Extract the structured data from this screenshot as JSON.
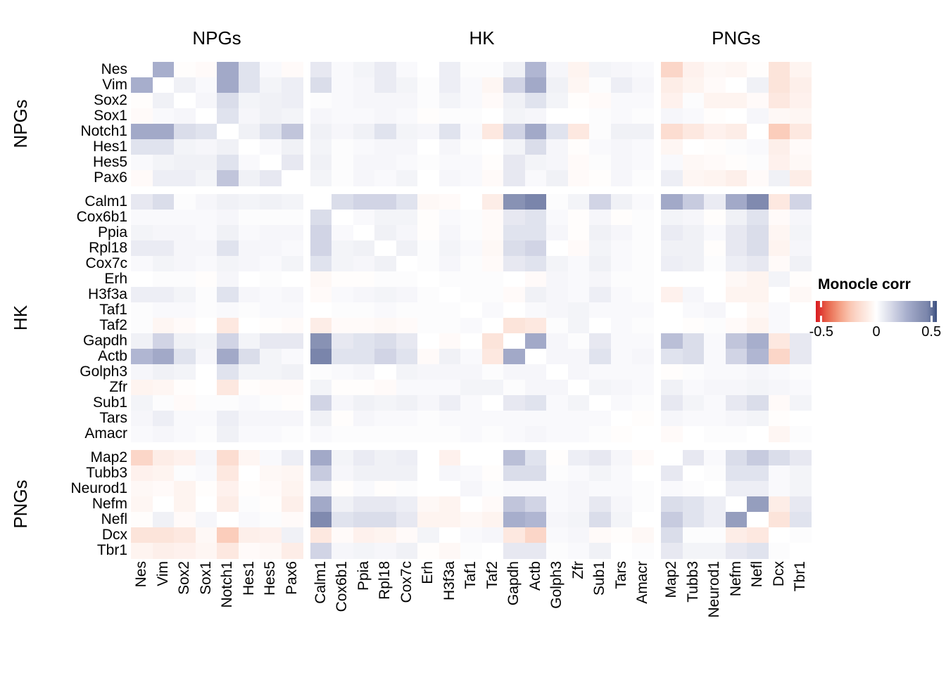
{
  "chart_data": {
    "type": "heatmap",
    "description": "Gene-gene correlation heatmap (Monocle correlation) of neural progenitor genes (NPGs), housekeeping genes (HK) and post-mitotic neuron genes (PNGs)",
    "col_groups": [
      {
        "label": "NPGs",
        "count": 8
      },
      {
        "label": "HK",
        "count": 16
      },
      {
        "label": "PNGs",
        "count": 7
      }
    ],
    "row_groups": [
      {
        "label": "NPGs",
        "count": 8
      },
      {
        "label": "HK",
        "count": 16
      },
      {
        "label": "PNGs",
        "count": 7
      }
    ],
    "genes": [
      "Nes",
      "Vim",
      "Sox2",
      "Sox1",
      "Notch1",
      "Hes1",
      "Hes5",
      "Pax6",
      "Calm1",
      "Cox6b1",
      "Ppia",
      "Rpl18",
      "Cox7c",
      "Erh",
      "H3f3a",
      "Taf1",
      "Taf2",
      "Gapdh",
      "Actb",
      "Golph3",
      "Zfr",
      "Sub1",
      "Tars",
      "Amacr",
      "Map2",
      "Tubb3",
      "Neurod1",
      "Nefm",
      "Nefl",
      "Dcx",
      "Tbr1"
    ],
    "matrix": [
      [
        0,
        0.28,
        -0.01,
        -0.02,
        0.3,
        0.1,
        0.02,
        -0.02,
        0.08,
        0.02,
        0.04,
        0.07,
        0.02,
        0,
        0.06,
        0.01,
        0.01,
        0.05,
        0.25,
        0.03,
        -0.05,
        0.04,
        0.03,
        0.02,
        -0.18,
        -0.06,
        -0.03,
        -0.04,
        -0.01,
        -0.12,
        -0.05
      ],
      [
        0.28,
        0,
        0.05,
        0.02,
        0.3,
        0.1,
        0.04,
        0.06,
        0.12,
        0.02,
        0.03,
        0.07,
        0.04,
        0.01,
        0.06,
        0.02,
        -0.04,
        0.15,
        0.3,
        0.05,
        -0.04,
        0.01,
        0.06,
        0.03,
        -0.08,
        -0.05,
        -0.02,
        0,
        0.05,
        -0.12,
        -0.07
      ],
      [
        -0.01,
        0.05,
        0,
        0.03,
        0.12,
        0.04,
        0.05,
        0.06,
        0.01,
        0.02,
        0.03,
        0.03,
        0.03,
        0.01,
        0.04,
        0.02,
        -0.02,
        0.05,
        0.1,
        0.04,
        -0.01,
        -0.02,
        0.02,
        0.02,
        -0.06,
        0.01,
        -0.05,
        -0.05,
        -0.02,
        -0.1,
        -0.06
      ],
      [
        -0.02,
        0.02,
        0.03,
        0,
        0.1,
        0.03,
        0.05,
        0.04,
        0.03,
        0.02,
        0.02,
        0.03,
        0.02,
        -0.01,
        0.01,
        0.01,
        0,
        0.04,
        0.03,
        0,
        0,
        0.01,
        0.02,
        0.01,
        0.03,
        0.02,
        -0.01,
        0,
        0.03,
        -0.03,
        -0.04
      ],
      [
        0.3,
        0.3,
        0.12,
        0.1,
        0,
        0.05,
        0.1,
        0.2,
        0.05,
        0.03,
        0.05,
        0.1,
        0.04,
        0.03,
        0.1,
        0.02,
        -0.1,
        0.15,
        0.3,
        0.1,
        -0.1,
        0.01,
        0.05,
        0.05,
        -0.15,
        -0.1,
        -0.06,
        -0.08,
        0,
        -0.22,
        -0.1
      ],
      [
        0.1,
        0.1,
        0.04,
        0.03,
        0.05,
        0,
        0.02,
        0.05,
        0.04,
        0.01,
        0.02,
        0.03,
        0.03,
        0,
        0.03,
        0.01,
        0,
        0.04,
        0.12,
        0.03,
        -0.01,
        0.02,
        0.03,
        0.02,
        -0.04,
        0,
        -0.01,
        0.01,
        0.02,
        -0.07,
        -0.02
      ],
      [
        0.02,
        0.04,
        0.05,
        0.05,
        0.1,
        0.02,
        0,
        0.08,
        0.05,
        0.01,
        0.03,
        0.03,
        0.02,
        0.01,
        0.02,
        0.02,
        -0.01,
        0.08,
        0.04,
        0.03,
        -0.02,
        0.01,
        0.03,
        0.02,
        0.02,
        -0.03,
        -0.02,
        -0.01,
        0.01,
        -0.06,
        -0.03
      ],
      [
        -0.02,
        0.06,
        0.06,
        0.04,
        0.2,
        0.05,
        0.08,
        0,
        0.04,
        0.01,
        0.03,
        0.02,
        0.04,
        0,
        0.03,
        0.02,
        -0.02,
        0.08,
        0.02,
        0.05,
        -0.02,
        -0.01,
        0.03,
        0.01,
        0.06,
        -0.04,
        -0.05,
        -0.07,
        -0.02,
        0.05,
        -0.08
      ],
      [
        0.08,
        0.12,
        0.01,
        0.03,
        0.05,
        0.04,
        0.05,
        0.04,
        0,
        0.12,
        0.15,
        0.15,
        0.1,
        -0.03,
        -0.02,
        0,
        -0.08,
        0.4,
        0.47,
        0.01,
        0.04,
        0.15,
        0.05,
        0.02,
        0.3,
        0.18,
        0.07,
        0.3,
        0.44,
        -0.1,
        0.15
      ],
      [
        0.02,
        0.02,
        0.02,
        0.02,
        0.03,
        0.01,
        0.01,
        0.01,
        0.12,
        0,
        0.02,
        0.04,
        0.04,
        -0.01,
        0.02,
        0.01,
        -0.02,
        0.08,
        0.1,
        0.02,
        -0.01,
        0.03,
        -0.01,
        0.01,
        0.04,
        0.03,
        -0.01,
        0.05,
        0.1,
        -0.02,
        0.03
      ],
      [
        0.04,
        0.03,
        0.03,
        0.02,
        0.05,
        0.02,
        0.03,
        0.03,
        0.15,
        0.02,
        0,
        0.05,
        0.03,
        -0.01,
        0.03,
        0.01,
        -0.02,
        0.1,
        0.1,
        0.03,
        -0.01,
        0.05,
        0.03,
        0.01,
        0.07,
        0.05,
        0.02,
        0.08,
        0.12,
        -0.04,
        0.04
      ],
      [
        0.07,
        0.07,
        0.03,
        0.03,
        0.1,
        0.03,
        0.03,
        0.02,
        0.15,
        0.04,
        0.05,
        0,
        0.05,
        0.01,
        0.04,
        0.02,
        -0.03,
        0.12,
        0.15,
        0,
        -0.02,
        0.04,
        0.02,
        0.01,
        0.05,
        0.05,
        -0.01,
        0.08,
        0.12,
        -0.05,
        0.03
      ],
      [
        0.02,
        0.04,
        0.03,
        0.02,
        0.04,
        0.03,
        0.02,
        0.04,
        0.1,
        0.04,
        0.03,
        0.05,
        0,
        0.01,
        0.03,
        0.01,
        -0.02,
        0.08,
        0.1,
        0.04,
        0.02,
        0.05,
        0.02,
        0.01,
        0.06,
        0.05,
        0.01,
        0.06,
        0.08,
        -0.02,
        0.05
      ],
      [
        0,
        0.01,
        0.01,
        -0.01,
        0.03,
        0,
        0.01,
        0,
        -0.03,
        -0.01,
        -0.01,
        0.01,
        0.01,
        0,
        0.01,
        0.01,
        0.01,
        0,
        -0.02,
        0.03,
        0.02,
        0.03,
        0.01,
        0.01,
        0,
        0,
        0,
        -0.03,
        -0.05,
        0.04,
        -0.01
      ],
      [
        0.06,
        0.06,
        0.04,
        0.01,
        0.1,
        0.03,
        0.02,
        0.03,
        -0.02,
        0.02,
        0.03,
        0.04,
        0.03,
        0.01,
        0,
        0.01,
        0.01,
        -0.02,
        0.05,
        0.03,
        0.02,
        0.06,
        0.02,
        0.01,
        -0.06,
        0.03,
        0,
        -0.05,
        -0.05,
        0,
        -0.03
      ],
      [
        0.01,
        0.02,
        0.02,
        0.01,
        0.02,
        0.01,
        0.02,
        0.02,
        0,
        0.01,
        0.01,
        0.02,
        0.01,
        0.01,
        0.01,
        0,
        0.02,
        0,
        0.02,
        0.03,
        0.04,
        0.02,
        0.02,
        0.02,
        0,
        0.02,
        0.03,
        0,
        -0.03,
        0.02,
        0
      ],
      [
        0.01,
        -0.04,
        -0.02,
        0,
        -0.1,
        0,
        -0.01,
        -0.02,
        -0.08,
        -0.02,
        -0.02,
        -0.03,
        -0.02,
        0.01,
        0.01,
        0.02,
        0,
        -0.12,
        -0.1,
        0.01,
        0.04,
        0,
        0.02,
        0.01,
        0,
        -0.01,
        0.01,
        -0.02,
        -0.05,
        0.02,
        0
      ],
      [
        0.05,
        0.15,
        0.05,
        0.04,
        0.15,
        0.04,
        0.08,
        0.08,
        0.4,
        0.08,
        0.1,
        0.12,
        0.08,
        0,
        -0.02,
        0,
        -0.12,
        0,
        0.3,
        0.03,
        0.01,
        0.08,
        0.02,
        0.02,
        0.22,
        0.12,
        0.02,
        0.2,
        0.28,
        -0.1,
        0.08
      ],
      [
        0.25,
        0.3,
        0.1,
        0.03,
        0.3,
        0.12,
        0.04,
        0.02,
        0.47,
        0.1,
        0.1,
        0.15,
        0.1,
        -0.02,
        0.05,
        0.02,
        -0.1,
        0.3,
        0,
        0.03,
        0.03,
        0.1,
        0.02,
        0.03,
        0.1,
        0.12,
        0.02,
        0.15,
        0.25,
        -0.18,
        0.08
      ],
      [
        0.03,
        0.05,
        0.04,
        0,
        0.1,
        0.04,
        0.04,
        0.05,
        0.01,
        0.02,
        0.03,
        0,
        0.04,
        0.03,
        0.03,
        0.03,
        0.01,
        0.03,
        0.03,
        0,
        0.03,
        0.02,
        0.02,
        0.02,
        -0.01,
        0.01,
        0.02,
        0.02,
        0.03,
        0.02,
        0.01
      ],
      [
        -0.05,
        -0.04,
        -0.01,
        0,
        -0.1,
        -0.01,
        -0.02,
        -0.02,
        0.04,
        -0.01,
        -0.01,
        -0.02,
        0.02,
        0.02,
        0.02,
        0.04,
        0.04,
        0.01,
        0.03,
        0.03,
        0,
        0.04,
        0.03,
        0.02,
        0.05,
        0.02,
        0.03,
        0.03,
        0.04,
        0.03,
        0.02
      ],
      [
        0.04,
        0.01,
        -0.02,
        0.01,
        0.01,
        0.02,
        0.01,
        -0.01,
        0.15,
        0.03,
        0.05,
        0.04,
        0.05,
        0.03,
        0.06,
        0.02,
        0,
        0.08,
        0.1,
        0.02,
        0.04,
        0,
        0.02,
        0.01,
        0.08,
        0.04,
        0.02,
        0.08,
        0.12,
        -0.02,
        0.04
      ],
      [
        0.03,
        0.06,
        0.02,
        0.02,
        0.06,
        0.03,
        0.03,
        0.03,
        0.05,
        -0.01,
        0.03,
        0.02,
        0.02,
        0.01,
        0.02,
        0.02,
        0.02,
        0.02,
        0.02,
        0.02,
        0.02,
        0.02,
        0,
        -0.01,
        0.03,
        0.02,
        0.02,
        0.03,
        0.04,
        -0.01,
        0
      ],
      [
        0.02,
        0.03,
        0.02,
        0.01,
        0.05,
        0.02,
        0.02,
        0.01,
        0.02,
        0.01,
        0.01,
        0.01,
        0.01,
        0.01,
        0.01,
        0.02,
        0.01,
        0.02,
        0.03,
        0.02,
        0.02,
        0.01,
        -0.01,
        0,
        -0.02,
        0,
        0.01,
        0.01,
        0,
        -0.04,
        0.01
      ],
      [
        -0.18,
        -0.08,
        -0.06,
        0.03,
        -0.15,
        -0.04,
        0.02,
        0.06,
        0.3,
        0.04,
        0.07,
        0.05,
        0.06,
        0,
        -0.06,
        0,
        0,
        0.22,
        0.1,
        -0.01,
        0.06,
        0.08,
        0.03,
        -0.02,
        0,
        0.08,
        0.02,
        0.12,
        0.18,
        0.12,
        0.08
      ],
      [
        -0.06,
        -0.05,
        0.01,
        0.02,
        -0.1,
        0,
        -0.03,
        -0.04,
        0.18,
        0.03,
        0.05,
        0.05,
        0.05,
        0,
        0.03,
        0.02,
        -0.01,
        0.12,
        0.12,
        0.01,
        0.02,
        0.04,
        0.02,
        0,
        0.08,
        0,
        0.01,
        0.1,
        0.1,
        0.02,
        0.04
      ],
      [
        -0.03,
        -0.02,
        -0.05,
        -0.01,
        -0.06,
        -0.01,
        -0.02,
        -0.05,
        0.07,
        -0.01,
        0.02,
        -0.01,
        0.01,
        0,
        0,
        0.03,
        0.01,
        0.02,
        0.02,
        0.02,
        0.03,
        0.02,
        0.02,
        0.01,
        0.02,
        0.01,
        0,
        0.06,
        0.06,
        0.02,
        0.04
      ],
      [
        -0.04,
        0,
        -0.05,
        0,
        -0.08,
        0.01,
        -0.01,
        -0.07,
        0.3,
        0.05,
        0.08,
        0.08,
        0.06,
        -0.03,
        -0.05,
        0,
        -0.02,
        0.2,
        0.15,
        0.02,
        0.03,
        0.08,
        0.03,
        0.01,
        0.12,
        0.1,
        0.06,
        0,
        0.35,
        -0.08,
        0.08
      ],
      [
        -0.01,
        0.05,
        -0.02,
        0.03,
        0,
        0.02,
        0.01,
        -0.02,
        0.44,
        0.1,
        0.12,
        0.12,
        0.08,
        -0.05,
        -0.05,
        -0.03,
        -0.05,
        0.28,
        0.25,
        0.03,
        0.04,
        0.12,
        0.04,
        0,
        0.18,
        0.1,
        0.06,
        0.35,
        0,
        -0.12,
        0.1
      ],
      [
        -0.12,
        -0.12,
        -0.1,
        -0.03,
        -0.22,
        -0.07,
        -0.06,
        0.05,
        -0.1,
        -0.02,
        -0.06,
        -0.05,
        -0.02,
        0.04,
        0,
        0.02,
        0.03,
        -0.1,
        -0.18,
        0.02,
        0.03,
        -0.02,
        -0.01,
        -0.03,
        0.12,
        0.01,
        0.01,
        -0.08,
        -0.1,
        0,
        0.01
      ],
      [
        -0.05,
        -0.07,
        -0.06,
        -0.04,
        -0.1,
        -0.02,
        -0.03,
        -0.08,
        0.15,
        0.03,
        0.04,
        0.03,
        0.05,
        -0.01,
        -0.03,
        0.01,
        0,
        0.08,
        0.08,
        0.01,
        0.02,
        0.05,
        0,
        0.01,
        0.08,
        0.04,
        0.04,
        0.08,
        0.1,
        0.01,
        0
      ]
    ],
    "legend": {
      "title": "Monocle corr",
      "tick_labels": [
        "-0.5",
        "0",
        "0.5"
      ],
      "tick_values": [
        -0.5,
        0,
        0.5
      ],
      "domain": [
        -0.55,
        0.55
      ],
      "negative_color": "#D91A20",
      "zero_color": "#FFFFFF",
      "positive_color": "#3A4E7E",
      "position": "right"
    },
    "layout": {
      "grid": false,
      "diagonal_value": 0
    }
  }
}
